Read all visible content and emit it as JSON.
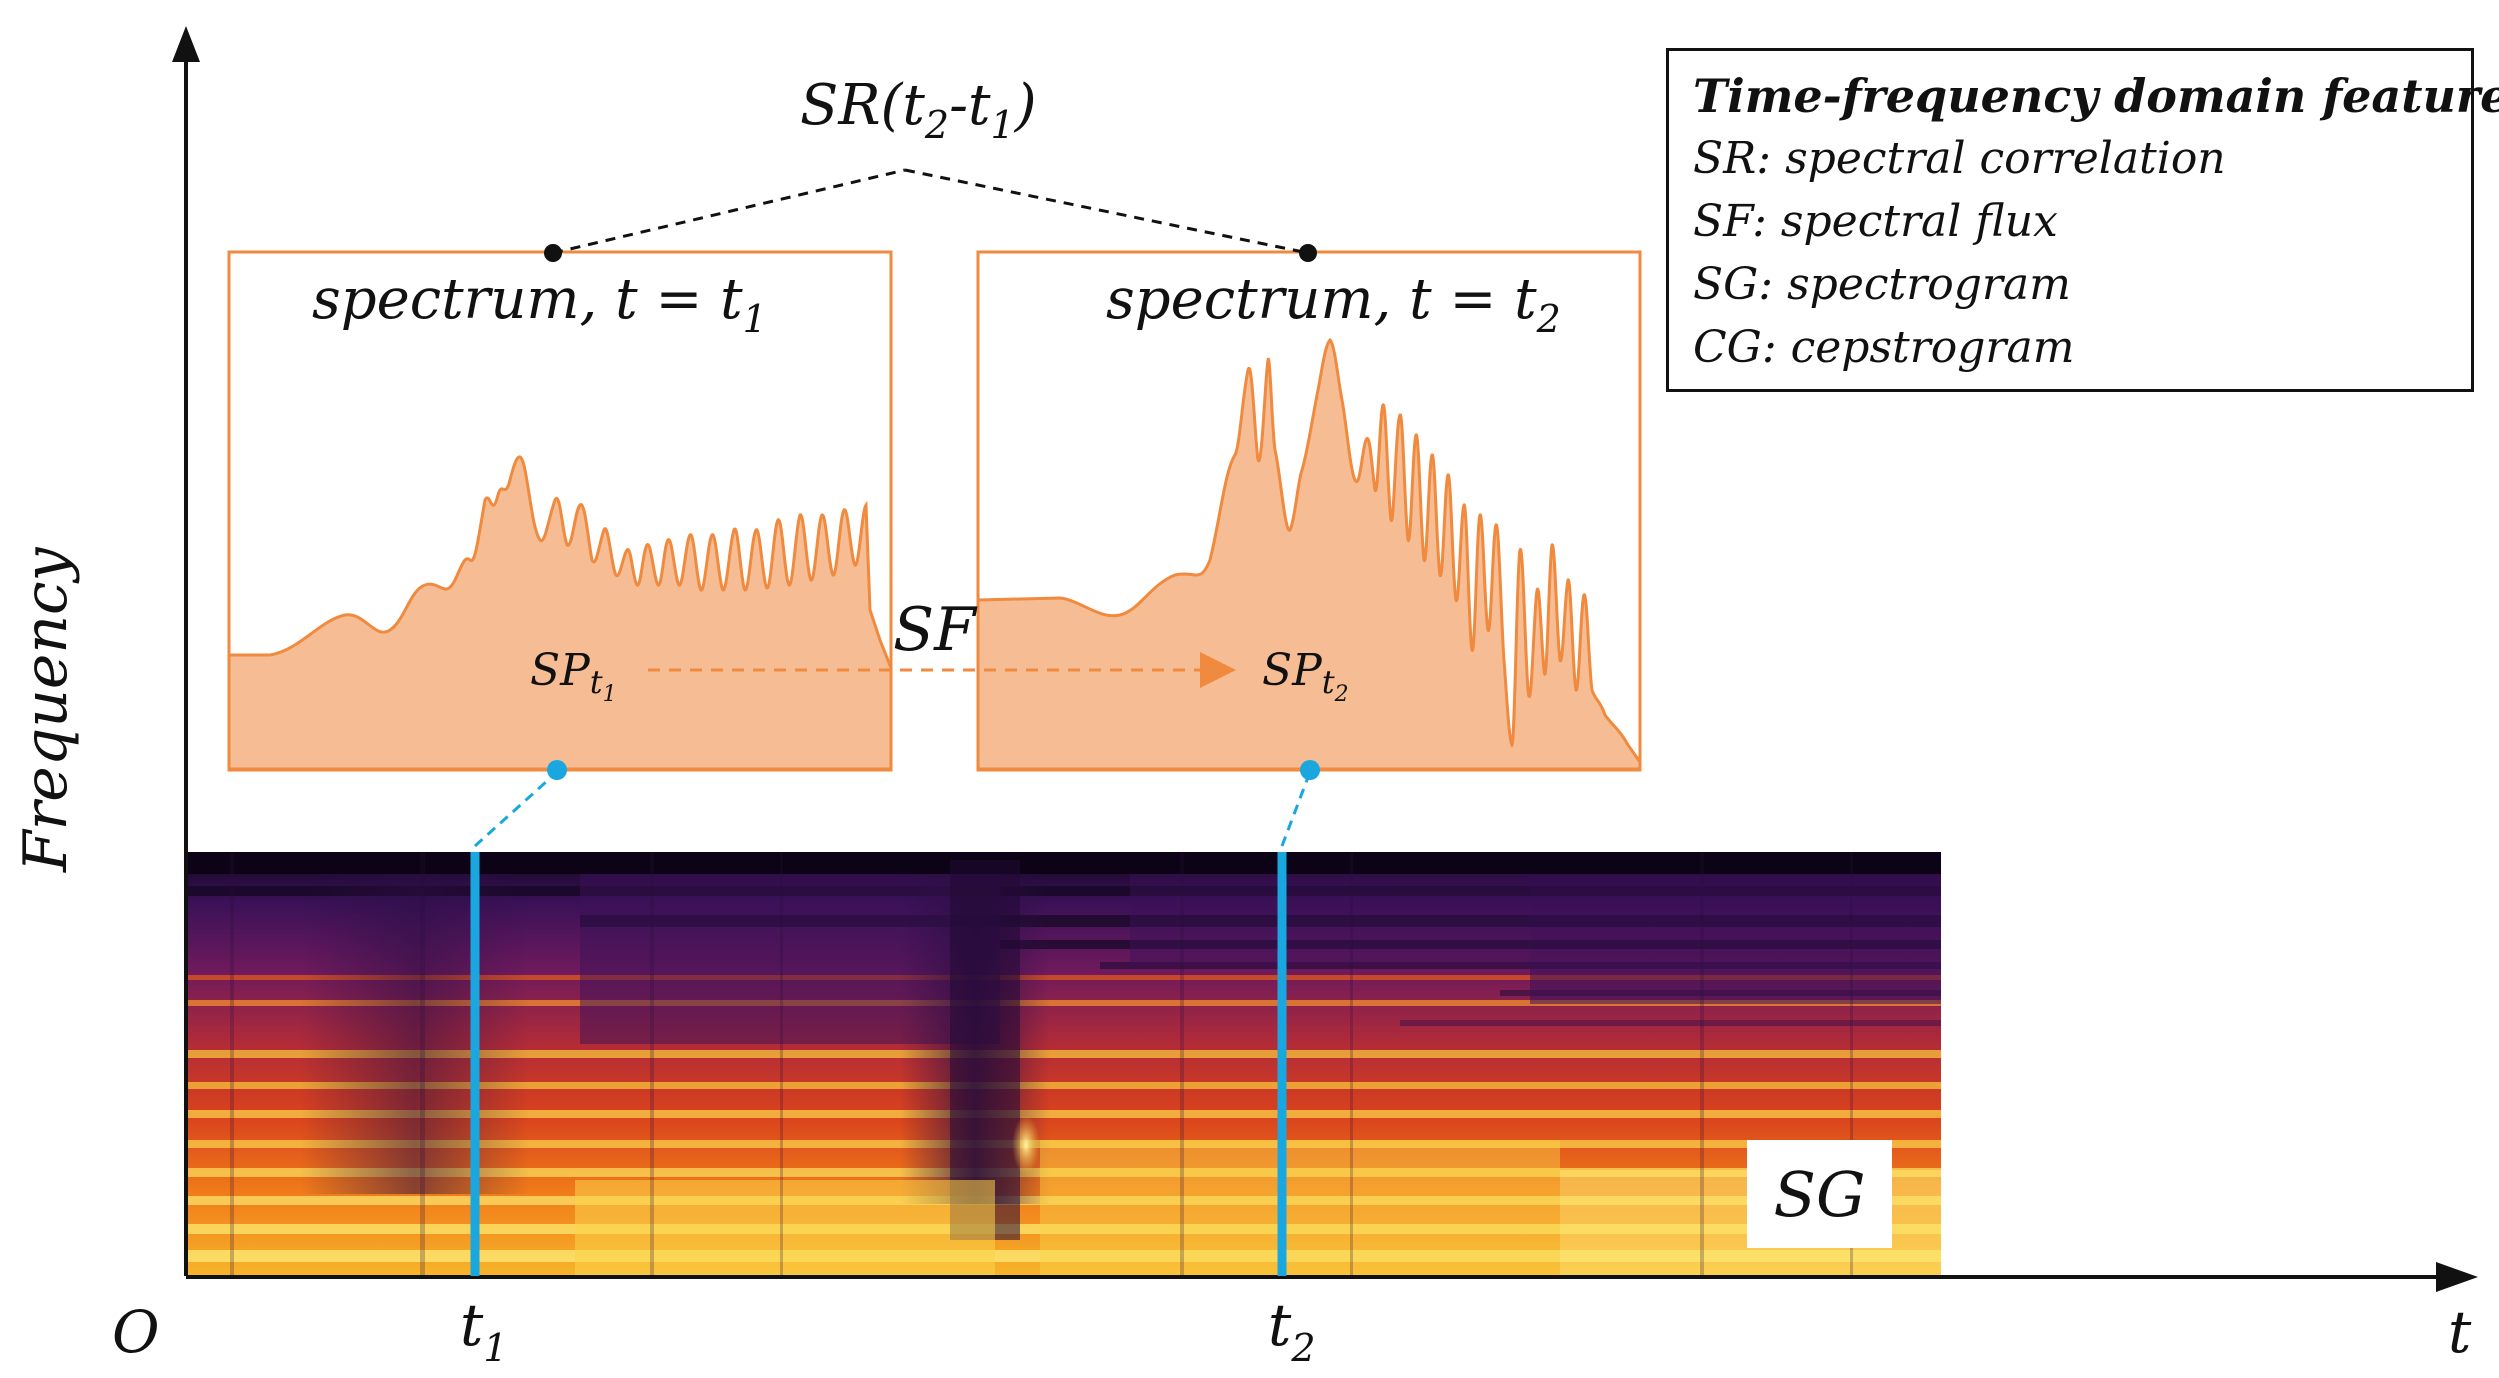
{
  "axes": {
    "y_label": "Frequency",
    "x_label": "t",
    "origin": "O",
    "t1_base": "t",
    "t1_sub": "1",
    "t2_base": "t",
    "t2_sub": "2"
  },
  "sr_label": {
    "prefix": "SR(t",
    "sub2": "2",
    "mid": "-t",
    "sub1": "1",
    "suffix": ")"
  },
  "spectrum1": {
    "title": "spectrum, t =  t",
    "title_sub": "1",
    "node_base": "SP",
    "node_t": "t",
    "node_sub": "1"
  },
  "spectrum2": {
    "title": "spectrum, t =  t",
    "title_sub": "2",
    "node_base": "SP",
    "node_t": "t",
    "node_sub": "2"
  },
  "sf_label": "SF",
  "sg_label": "SG",
  "legend": {
    "title": "Time-frequency domain features:",
    "items": [
      "SR: spectral correlation",
      "SF: spectral flux",
      "SG: spectrogram",
      "CG: cepstrogram"
    ]
  },
  "colors": {
    "spectrum_fill": "#f6bd94",
    "spectrum_line": "#ef8a3f",
    "marker_blue": "#1aa7e0",
    "axis": "#111111"
  }
}
